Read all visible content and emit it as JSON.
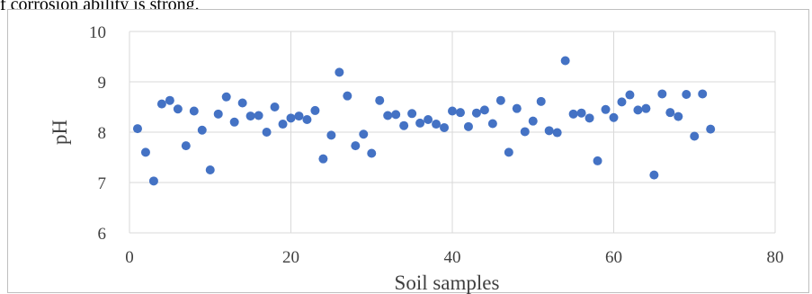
{
  "caption": "f corrosion ability is strong.",
  "chart_data": {
    "type": "scatter",
    "title": "",
    "xlabel": "Soil samples",
    "ylabel": "pH",
    "xlim": [
      0,
      80
    ],
    "ylim": [
      6,
      10
    ],
    "x_ticks": [
      0,
      20,
      40,
      60,
      80
    ],
    "y_ticks": [
      6,
      7,
      8,
      9,
      10
    ],
    "grid": true,
    "marker_color": "#4472c4",
    "series": [
      {
        "x": [
          1,
          2,
          3,
          4,
          5,
          6,
          7,
          8,
          9,
          10,
          11,
          12,
          13,
          14,
          15,
          16,
          17,
          18,
          19,
          20,
          21,
          22,
          23,
          24,
          25,
          26,
          27,
          28,
          29,
          30,
          31,
          32,
          33,
          34,
          35,
          36,
          37,
          38,
          39,
          40,
          41,
          42,
          43,
          44,
          45,
          46,
          47,
          48,
          49,
          50,
          51,
          52,
          53,
          54,
          55,
          56,
          57,
          58,
          59,
          60,
          61,
          62,
          63,
          64,
          65,
          66,
          67,
          68,
          69,
          70,
          71,
          72
        ],
        "y": [
          8.07,
          7.6,
          7.03,
          8.56,
          8.63,
          8.46,
          7.73,
          8.42,
          8.04,
          7.25,
          8.36,
          8.7,
          8.2,
          8.58,
          8.32,
          8.33,
          8.0,
          8.5,
          8.16,
          8.28,
          8.32,
          8.25,
          8.43,
          7.47,
          7.94,
          9.19,
          8.72,
          7.73,
          7.96,
          7.58,
          8.63,
          8.33,
          8.35,
          8.13,
          8.37,
          8.18,
          8.25,
          8.16,
          8.09,
          8.42,
          8.39,
          8.11,
          8.38,
          8.44,
          8.17,
          8.63,
          7.6,
          8.47,
          8.01,
          8.22,
          8.61,
          8.03,
          7.99,
          9.42,
          8.36,
          8.38,
          8.28,
          7.43,
          8.45,
          8.29,
          8.6,
          8.74,
          8.44,
          8.47,
          7.15,
          8.76,
          8.39,
          8.31,
          8.75,
          7.92,
          8.76,
          8.06
        ]
      }
    ]
  }
}
